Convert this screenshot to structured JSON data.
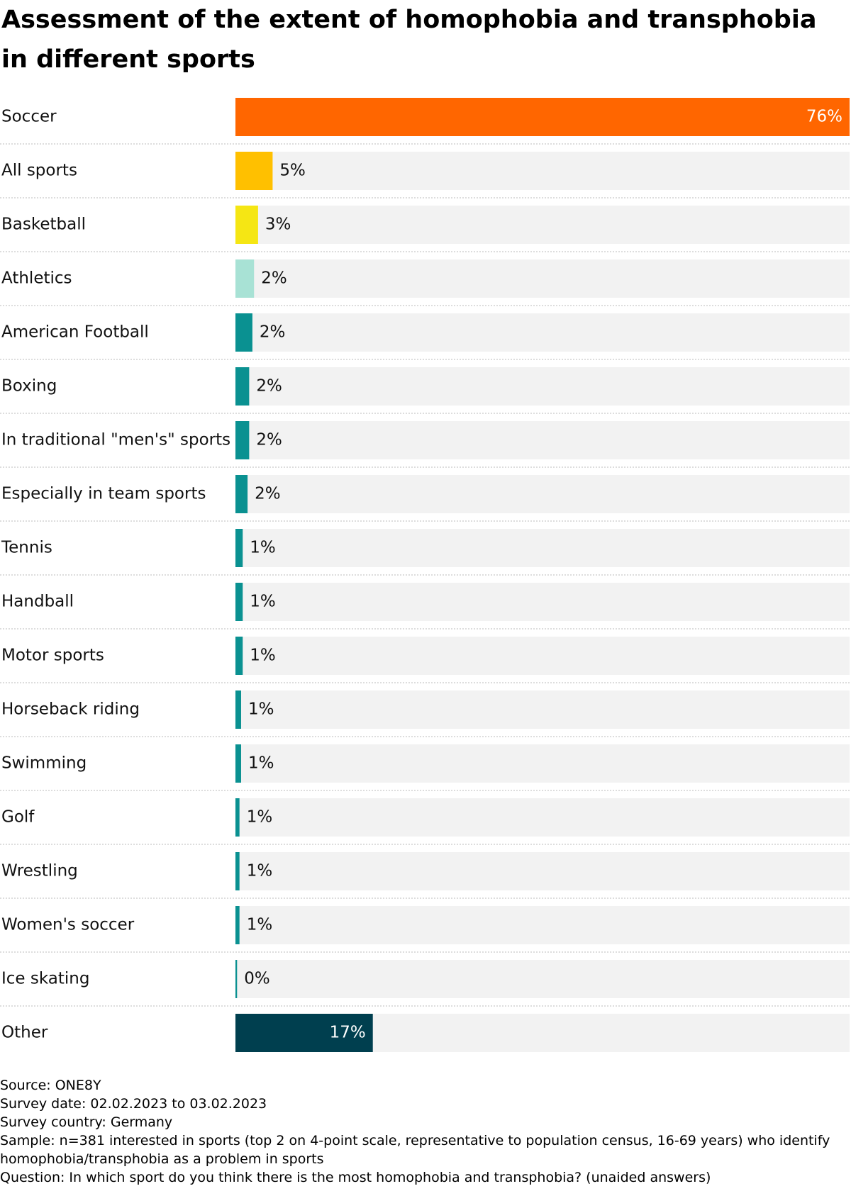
{
  "chart_data": {
    "type": "bar",
    "orientation": "horizontal",
    "title": "Assessment of the extent of homophobia and transphobia in different sports",
    "categories": [
      "Soccer",
      "All sports",
      "Basketball",
      "Athletics",
      "American Football",
      "Boxing",
      "In traditional \"men's\" sports",
      "Especially in team sports",
      "Tennis",
      "Handball",
      "Motor sports",
      "Horseback riding",
      "Swimming",
      "Golf",
      "Wrestling",
      "Women's soccer",
      "Ice skating",
      "Other"
    ],
    "values": [
      76,
      4.6,
      2.8,
      2.3,
      2.1,
      1.7,
      1.7,
      1.5,
      0.9,
      0.9,
      0.9,
      0.7,
      0.7,
      0.5,
      0.5,
      0.5,
      0.2,
      17
    ],
    "value_labels": [
      "76%",
      "5%",
      "3%",
      "2%",
      "2%",
      "2%",
      "2%",
      "2%",
      "1%",
      "1%",
      "1%",
      "1%",
      "1%",
      "1%",
      "1%",
      "1%",
      "0%",
      "17%"
    ],
    "colors": [
      "#ff6600",
      "#ffc000",
      "#f5e614",
      "#a8e2d5",
      "#0a9191",
      "#0a9191",
      "#0a9191",
      "#0a9191",
      "#0a9191",
      "#0a9191",
      "#0a9191",
      "#0a9191",
      "#0a9191",
      "#0a9191",
      "#0a9191",
      "#0a9191",
      "#0a9191",
      "#003f4f"
    ],
    "xlim": [
      0,
      76
    ],
    "notes": [
      "Source: ONE8Y",
      "Survey date: 02.02.2023 to 03.02.2023",
      "Survey country: Germany",
      "Sample: n=381 interested in sports (top 2 on 4-point scale, representative to population census, 16-69 years) who identify homophobia/transphobia as a problem in sports",
      "Question: In which sport do you think there is the most homophobia and transphobia? (unaided answers)"
    ]
  }
}
